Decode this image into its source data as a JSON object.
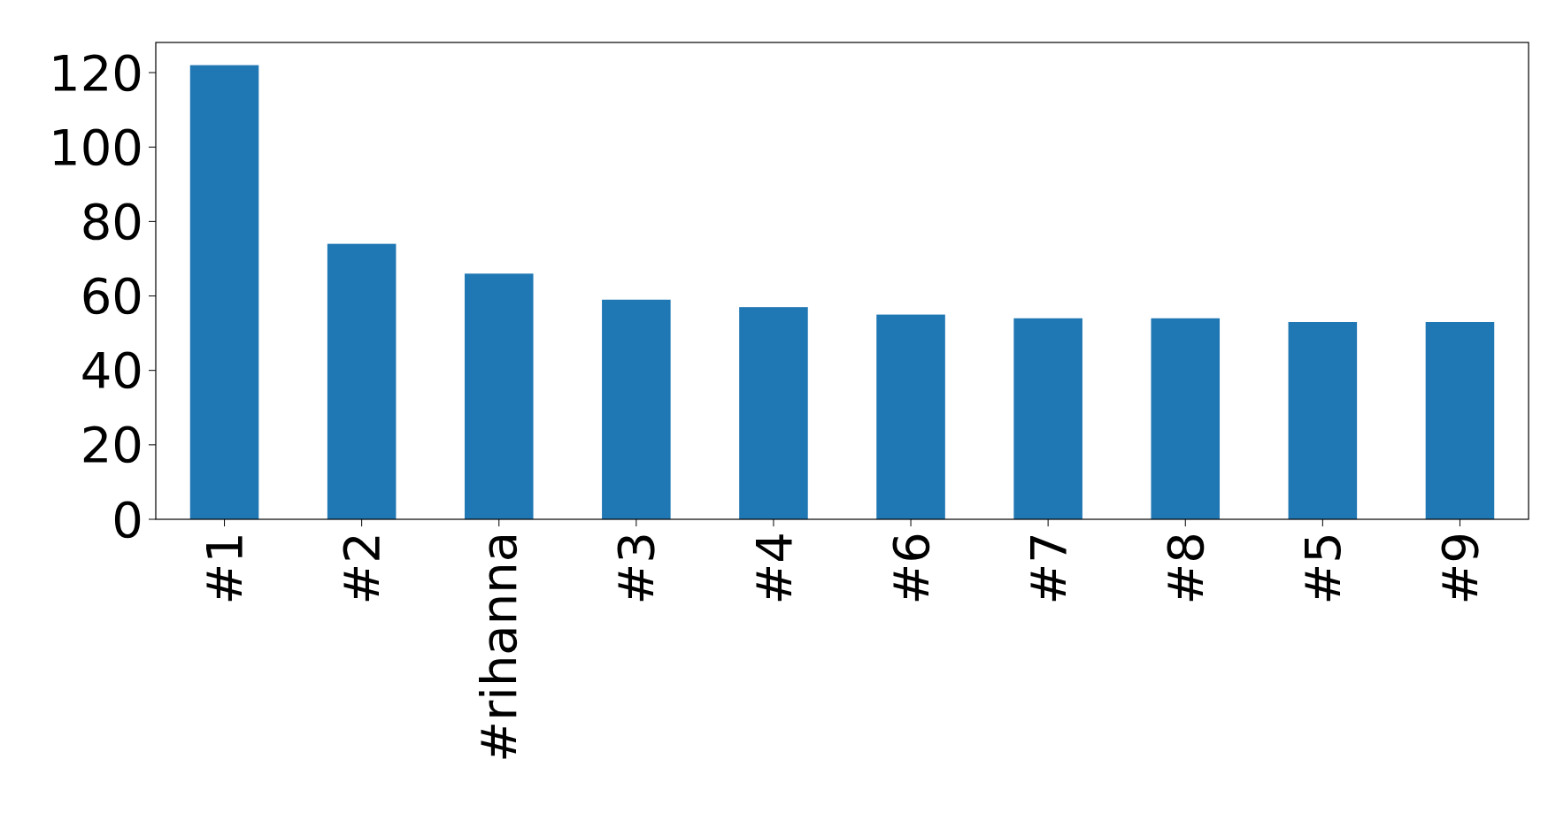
{
  "chart_data": {
    "type": "bar",
    "categories": [
      "#1",
      "#2",
      "#rihanna",
      "#3",
      "#4",
      "#6",
      "#7",
      "#8",
      "#5",
      "#9"
    ],
    "values": [
      122,
      74,
      66,
      59,
      57,
      55,
      54,
      54,
      53,
      53
    ],
    "color": "#1f77b4",
    "ylim": [
      0,
      128.1
    ],
    "yticks": [
      0,
      20,
      40,
      60,
      80,
      100,
      120
    ],
    "grid": false
  }
}
